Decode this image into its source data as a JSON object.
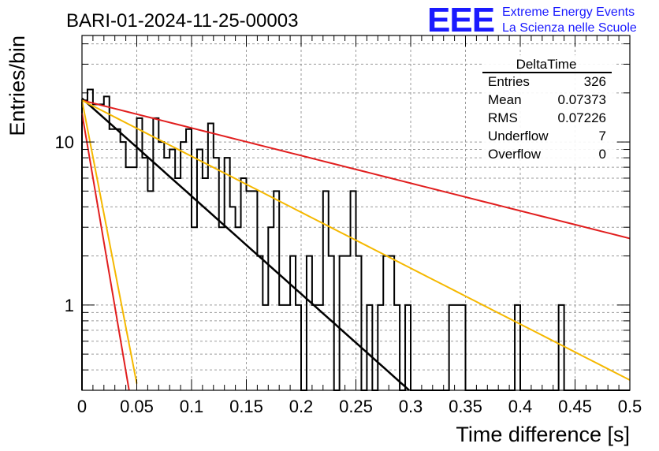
{
  "header": {
    "run_title": "BARI-01-2024-11-25-00003",
    "logo_text": "EEE",
    "logo_line1": "Extreme Energy Events",
    "logo_line2": "La Scienza nelle Scuole"
  },
  "stats_box": {
    "title": "DeltaTime",
    "rows": [
      {
        "label": "Entries",
        "value": "326"
      },
      {
        "label": "Mean",
        "value": "0.07373"
      },
      {
        "label": "RMS",
        "value": "0.07226"
      },
      {
        "label": "Underflow",
        "value": "7"
      },
      {
        "label": "Overflow",
        "value": "0"
      }
    ]
  },
  "colors": {
    "histogram": "#000000",
    "fit_main": "#000000",
    "fit_red": "#e11e1e",
    "fit_orange": "#f5b800",
    "logo": "#1a1aff",
    "grid": "#9a9a9a"
  },
  "chart_data": {
    "type": "histogram",
    "xlabel": "Time difference [s]",
    "ylabel": "Entries/bin",
    "xlim": [
      0,
      0.5
    ],
    "ylim": [
      0.3,
      45
    ],
    "yscale": "log",
    "grid": true,
    "x_ticks": [
      "0",
      "0.05",
      "0.1",
      "0.15",
      "0.2",
      "0.25",
      "0.3",
      "0.35",
      "0.4",
      "0.45",
      "0.5"
    ],
    "y_ticks": [
      "1",
      "10"
    ],
    "bin_width": 0.005,
    "counts": [
      18,
      21,
      17,
      17,
      19,
      12,
      12,
      10,
      7,
      7,
      14,
      8,
      5,
      14,
      10,
      8,
      9,
      6,
      10,
      12,
      3,
      9,
      6,
      13,
      8,
      3,
      8,
      4,
      3,
      6,
      5,
      5,
      2,
      1,
      3,
      5,
      1,
      1,
      2,
      1,
      0,
      2,
      1,
      1,
      5,
      2,
      0,
      2,
      2,
      5,
      2,
      0,
      1,
      0,
      1,
      2,
      2,
      1,
      0,
      1,
      0,
      0,
      0,
      0,
      0,
      0,
      0,
      1,
      1,
      1,
      0,
      0,
      0,
      0,
      0,
      0,
      0,
      0,
      0,
      1,
      0,
      0,
      0,
      0,
      0,
      0,
      0,
      1,
      0,
      0,
      0,
      0,
      0,
      0,
      0,
      0,
      0,
      0,
      0,
      0
    ],
    "fits": [
      {
        "color": "black",
        "y0": 18.5,
        "slope_per_s": -13.8,
        "x_range": [
          0,
          0.31
        ]
      },
      {
        "color": "red",
        "y0": 18.0,
        "slope_per_s": -3.9,
        "x_range": [
          0,
          0.5
        ]
      },
      {
        "color": "orange",
        "y0": 18.0,
        "slope_per_s": -7.9,
        "x_range": [
          0,
          0.5
        ]
      },
      {
        "color": "red",
        "y0": 15.0,
        "slope_per_s": -91.0,
        "x_range": [
          0,
          0.05
        ]
      },
      {
        "color": "orange",
        "y0": 18.0,
        "slope_per_s": -80.0,
        "x_range": [
          0,
          0.05
        ]
      }
    ]
  }
}
